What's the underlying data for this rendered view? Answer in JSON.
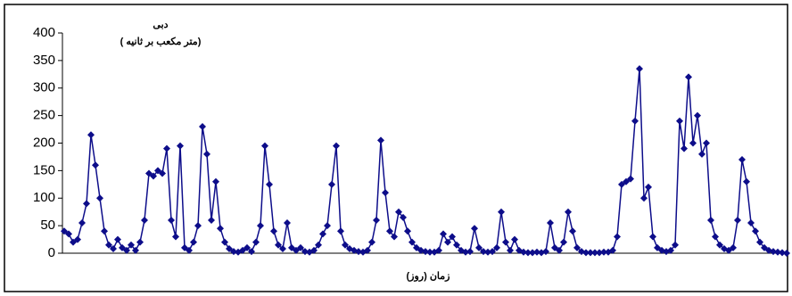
{
  "chart_data": {
    "type": "line",
    "title": "دبی",
    "subtitle": "( متر مکعب بر ثانیه)",
    "x_label": "زمان (روز)",
    "ylim": [
      0,
      400
    ],
    "yticks": [
      0,
      50,
      100,
      150,
      200,
      250,
      300,
      350,
      400
    ],
    "grid": false,
    "color": "#0d0d8a",
    "values": [
      40,
      35,
      20,
      25,
      55,
      90,
      215,
      160,
      100,
      40,
      15,
      8,
      25,
      10,
      5,
      15,
      5,
      20,
      60,
      145,
      140,
      150,
      145,
      190,
      60,
      30,
      195,
      10,
      5,
      20,
      50,
      230,
      180,
      60,
      130,
      45,
      20,
      8,
      3,
      2,
      5,
      10,
      3,
      20,
      50,
      195,
      125,
      40,
      15,
      8,
      55,
      10,
      5,
      10,
      3,
      2,
      5,
      15,
      35,
      50,
      125,
      195,
      40,
      15,
      8,
      5,
      3,
      2,
      5,
      20,
      60,
      205,
      110,
      40,
      30,
      75,
      65,
      40,
      20,
      10,
      5,
      3,
      2,
      2,
      5,
      35,
      20,
      30,
      15,
      5,
      2,
      3,
      45,
      10,
      3,
      2,
      3,
      10,
      75,
      20,
      5,
      25,
      5,
      2,
      1,
      1,
      2,
      1,
      3,
      55,
      10,
      5,
      20,
      75,
      40,
      10,
      3,
      1,
      1,
      1,
      1,
      2,
      2,
      5,
      30,
      125,
      130,
      135,
      240,
      335,
      100,
      120,
      30,
      10,
      5,
      3,
      5,
      15,
      240,
      190,
      320,
      200,
      250,
      180,
      200,
      60,
      30,
      15,
      8,
      5,
      10,
      60,
      170,
      130,
      55,
      40,
      20,
      10,
      5,
      3,
      2,
      1,
      0
    ]
  }
}
